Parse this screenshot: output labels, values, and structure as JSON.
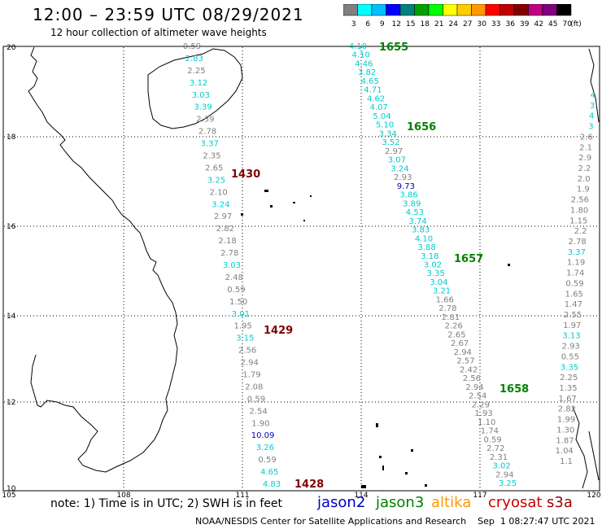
{
  "title": "12:00 – 23:59 UTC 08/29/2021",
  "subtitle": "12 hour collection of altimeter wave heights",
  "colorbar": {
    "unit_label": "(ft)",
    "ticks": [
      "3",
      "6",
      "9",
      "12",
      "15",
      "18",
      "21",
      "24",
      "27",
      "30",
      "33",
      "36",
      "39",
      "42",
      "45",
      "70"
    ],
    "colors": [
      "#808080",
      "#00ffff",
      "#00bfff",
      "#0000ff",
      "#008080",
      "#00a000",
      "#00ff00",
      "#ffff00",
      "#ffcc00",
      "#ff9900",
      "#ff0000",
      "#c00000",
      "#800000",
      "#c00080",
      "#800080",
      "#000000"
    ]
  },
  "axes": {
    "x_ticks": [
      "105",
      "108",
      "111",
      "114",
      "117",
      "120"
    ],
    "y_ticks": [
      "20",
      "18",
      "16",
      "14",
      "12",
      "10"
    ]
  },
  "track_times": [
    {
      "text": "1655",
      "color": "#008000"
    },
    {
      "text": "1656",
      "color": "#008000"
    },
    {
      "text": "1657",
      "color": "#008000"
    },
    {
      "text": "1658",
      "color": "#008000"
    },
    {
      "text": "1430",
      "color": "#800000"
    },
    {
      "text": "1429",
      "color": "#800000"
    },
    {
      "text": "1428",
      "color": "#800000"
    }
  ],
  "tracks": [
    {
      "name": "west",
      "values": [
        {
          "v": "0.59",
          "c": "#808080"
        },
        {
          "v": "2.83",
          "c": "#00cccc"
        },
        {
          "v": "2.25",
          "c": "#808080"
        },
        {
          "v": "3.12",
          "c": "#00cccc"
        },
        {
          "v": "3.03",
          "c": "#00cccc"
        },
        {
          "v": "3.39",
          "c": "#00cccc"
        },
        {
          "v": "2.39",
          "c": "#808080"
        },
        {
          "v": "2.78",
          "c": "#808080"
        },
        {
          "v": "3.37",
          "c": "#00cccc"
        },
        {
          "v": "2.35",
          "c": "#808080"
        },
        {
          "v": "2.65",
          "c": "#808080"
        },
        {
          "v": "3.25",
          "c": "#00cccc"
        },
        {
          "v": "2.10",
          "c": "#808080"
        },
        {
          "v": "3.24",
          "c": "#00cccc"
        },
        {
          "v": "2.97",
          "c": "#808080"
        },
        {
          "v": "2.82",
          "c": "#808080"
        },
        {
          "v": "2.18",
          "c": "#808080"
        },
        {
          "v": "2.78",
          "c": "#808080"
        },
        {
          "v": "3.03",
          "c": "#00cccc"
        },
        {
          "v": "2.48",
          "c": "#808080"
        },
        {
          "v": "0.59",
          "c": "#808080"
        },
        {
          "v": "1.50",
          "c": "#808080"
        },
        {
          "v": "3.01",
          "c": "#00cccc"
        },
        {
          "v": "1.95",
          "c": "#808080"
        },
        {
          "v": "3.15",
          "c": "#00cccc"
        },
        {
          "v": "2.56",
          "c": "#808080"
        },
        {
          "v": "2.94",
          "c": "#808080"
        },
        {
          "v": "1.79",
          "c": "#808080"
        },
        {
          "v": "2.08",
          "c": "#808080"
        },
        {
          "v": "0.59",
          "c": "#808080"
        },
        {
          "v": "2.54",
          "c": "#808080"
        },
        {
          "v": "1.90",
          "c": "#808080"
        },
        {
          "v": "10.09",
          "c": "#0000c0"
        },
        {
          "v": "3.26",
          "c": "#00cccc"
        },
        {
          "v": "0.59",
          "c": "#808080"
        },
        {
          "v": "4.65",
          "c": "#00cccc"
        },
        {
          "v": "4.83",
          "c": "#00cccc"
        }
      ]
    },
    {
      "name": "middle",
      "values": [
        {
          "v": "4.10",
          "c": "#00cccc"
        },
        {
          "v": "4.10",
          "c": "#00cccc"
        },
        {
          "v": "4.46",
          "c": "#00cccc"
        },
        {
          "v": "3.82",
          "c": "#00cccc"
        },
        {
          "v": "4.65",
          "c": "#00cccc"
        },
        {
          "v": "4.71",
          "c": "#00cccc"
        },
        {
          "v": "4.62",
          "c": "#00cccc"
        },
        {
          "v": "4.07",
          "c": "#00cccc"
        },
        {
          "v": "5.04",
          "c": "#00cccc"
        },
        {
          "v": "5.10",
          "c": "#00cccc"
        },
        {
          "v": "3.34",
          "c": "#00cccc"
        },
        {
          "v": "3.52",
          "c": "#00cccc"
        },
        {
          "v": "2.97",
          "c": "#808080"
        },
        {
          "v": "3.07",
          "c": "#00cccc"
        },
        {
          "v": "3.24",
          "c": "#00cccc"
        },
        {
          "v": "2.93",
          "c": "#808080"
        },
        {
          "v": "9.73",
          "c": "#0000c0"
        },
        {
          "v": "3.86",
          "c": "#00cccc"
        },
        {
          "v": "3.89",
          "c": "#00cccc"
        },
        {
          "v": "4.53",
          "c": "#00cccc"
        },
        {
          "v": "3.74",
          "c": "#00cccc"
        },
        {
          "v": "3.83",
          "c": "#00cccc"
        },
        {
          "v": "4.10",
          "c": "#00cccc"
        },
        {
          "v": "3.88",
          "c": "#00cccc"
        },
        {
          "v": "3.18",
          "c": "#00cccc"
        },
        {
          "v": "3.02",
          "c": "#00cccc"
        },
        {
          "v": "3.35",
          "c": "#00cccc"
        },
        {
          "v": "3.04",
          "c": "#00cccc"
        },
        {
          "v": "3.21",
          "c": "#00cccc"
        },
        {
          "v": "1.66",
          "c": "#808080"
        },
        {
          "v": "2.78",
          "c": "#808080"
        },
        {
          "v": "2.81",
          "c": "#808080"
        },
        {
          "v": "2.26",
          "c": "#808080"
        },
        {
          "v": "2.65",
          "c": "#808080"
        },
        {
          "v": "2.67",
          "c": "#808080"
        },
        {
          "v": "2.94",
          "c": "#808080"
        },
        {
          "v": "2.57",
          "c": "#808080"
        },
        {
          "v": "2.42",
          "c": "#808080"
        },
        {
          "v": "2.56",
          "c": "#808080"
        },
        {
          "v": "2.94",
          "c": "#808080"
        },
        {
          "v": "2.54",
          "c": "#808080"
        },
        {
          "v": "2.29",
          "c": "#808080"
        },
        {
          "v": "1.93",
          "c": "#808080"
        },
        {
          "v": "1.10",
          "c": "#808080"
        },
        {
          "v": "1.74",
          "c": "#808080"
        },
        {
          "v": "0.59",
          "c": "#808080"
        },
        {
          "v": "2.72",
          "c": "#808080"
        },
        {
          "v": "2.31",
          "c": "#808080"
        },
        {
          "v": "3.02",
          "c": "#00cccc"
        },
        {
          "v": "2.94",
          "c": "#808080"
        },
        {
          "v": "3.25",
          "c": "#00cccc"
        }
      ]
    },
    {
      "name": "east",
      "values": [
        {
          "v": "4",
          "c": "#00cccc"
        },
        {
          "v": "3",
          "c": "#00cccc"
        },
        {
          "v": "4",
          "c": "#00cccc"
        },
        {
          "v": "3",
          "c": "#00cccc"
        },
        {
          "v": "2.6",
          "c": "#808080"
        },
        {
          "v": "2.1",
          "c": "#808080"
        },
        {
          "v": "2.9",
          "c": "#808080"
        },
        {
          "v": "2.2",
          "c": "#808080"
        },
        {
          "v": "2.0",
          "c": "#808080"
        },
        {
          "v": "1.9",
          "c": "#808080"
        },
        {
          "v": "2.56",
          "c": "#808080"
        },
        {
          "v": "1.80",
          "c": "#808080"
        },
        {
          "v": "1.15",
          "c": "#808080"
        },
        {
          "v": "2.2",
          "c": "#808080"
        },
        {
          "v": "2.78",
          "c": "#808080"
        },
        {
          "v": "3.37",
          "c": "#00cccc"
        },
        {
          "v": "1.19",
          "c": "#808080"
        },
        {
          "v": "1.74",
          "c": "#808080"
        },
        {
          "v": "0.59",
          "c": "#808080"
        },
        {
          "v": "1.65",
          "c": "#808080"
        },
        {
          "v": "1.47",
          "c": "#808080"
        },
        {
          "v": "2.55",
          "c": "#808080"
        },
        {
          "v": "1.97",
          "c": "#808080"
        },
        {
          "v": "3.13",
          "c": "#00cccc"
        },
        {
          "v": "2.93",
          "c": "#808080"
        },
        {
          "v": "0.55",
          "c": "#808080"
        },
        {
          "v": "3.35",
          "c": "#00cccc"
        },
        {
          "v": "2.25",
          "c": "#808080"
        },
        {
          "v": "1.35",
          "c": "#808080"
        },
        {
          "v": "1.67",
          "c": "#808080"
        },
        {
          "v": "2.82",
          "c": "#808080"
        },
        {
          "v": "1.99",
          "c": "#808080"
        },
        {
          "v": "1.30",
          "c": "#808080"
        },
        {
          "v": "1.87",
          "c": "#808080"
        },
        {
          "v": "1.04",
          "c": "#808080"
        },
        {
          "v": "1.1",
          "c": "#808080"
        }
      ]
    }
  ],
  "note": "note:  1) Time is in UTC;  2) SWH is in feet",
  "legend": [
    {
      "name": "jason2",
      "color": "#0000cc"
    },
    {
      "name": "jason3",
      "color": "#008000"
    },
    {
      "name": "altika",
      "color": "#ff9900"
    },
    {
      "name": "cryosat",
      "color": "#cc0000"
    },
    {
      "name": "s3a",
      "color": "#990000"
    }
  ],
  "footer": "NOAA/NESDIS Center for Satellite Applications and Research    Sep  1 08:27:47 UTC 2021"
}
